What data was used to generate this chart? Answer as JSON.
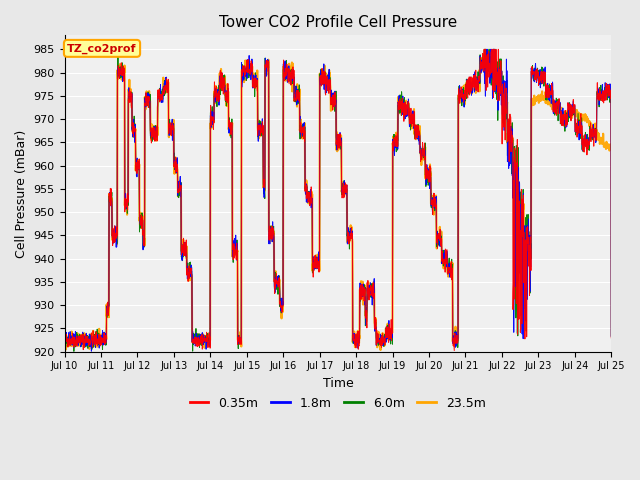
{
  "title": "Tower CO2 Profile Cell Pressure",
  "xlabel": "Time",
  "ylabel": "Cell Pressure (mBar)",
  "ylim": [
    920,
    988
  ],
  "yticks": [
    920,
    925,
    930,
    935,
    940,
    945,
    950,
    955,
    960,
    965,
    970,
    975,
    980,
    985
  ],
  "xtick_labels": [
    "Jul 10",
    "Jul 11",
    "Jul 12",
    "Jul 13",
    "Jul 14",
    "Jul 15",
    "Jul 16",
    "Jul 17",
    "Jul 18",
    "Jul 19",
    "Jul 20",
    "Jul 21",
    "Jul 22",
    "Jul 23",
    "Jul 24",
    "Jul 25"
  ],
  "series_colors": [
    "red",
    "blue",
    "green",
    "orange"
  ],
  "series_labels": [
    "0.35m",
    "1.8m",
    "6.0m",
    "23.5m"
  ],
  "annotation_text": "TZ_co2prof",
  "annotation_color": "#cc0000",
  "annotation_bg": "#ffff99",
  "annotation_border": "orange",
  "bg_color": "#e8e8e8",
  "plot_bg": "#f0f0f0",
  "grid_color": "white",
  "n_points": 2160,
  "seed": 42
}
